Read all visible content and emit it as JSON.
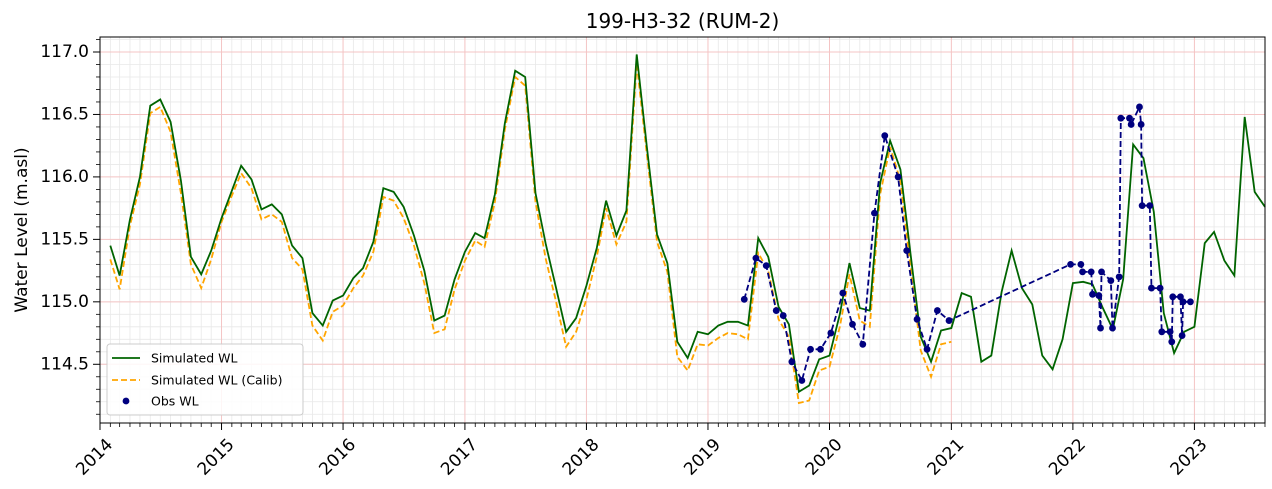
{
  "chart_data": {
    "type": "line",
    "title": "199-H3-32 (RUM-2)",
    "xlabel": "",
    "ylabel": "Water Level (m.asl)",
    "x_type": "date",
    "xlim": [
      "2014-01-01",
      "2023-08-01"
    ],
    "ylim": [
      114.03,
      117.12
    ],
    "x_ticks": [
      "2014",
      "2015",
      "2016",
      "2017",
      "2018",
      "2019",
      "2020",
      "2021",
      "2022",
      "2023"
    ],
    "y_ticks": [
      114.5,
      115.0,
      115.5,
      116.0,
      116.5,
      117.0
    ],
    "y_tick_labels": [
      "114.5",
      "115.0",
      "115.5",
      "116.0",
      "116.5",
      "117.0"
    ],
    "grid": true,
    "legend_position": "lower-left",
    "colors": {
      "simulated": "#006400",
      "calib": "#FFA500",
      "obs": "#00007F",
      "major_grid": "#f4c4c4",
      "minor_grid": "#e8e8e8"
    },
    "series": [
      {
        "name": "Simulated WL",
        "style": "solid",
        "points": [
          [
            "2014-02-01",
            115.45
          ],
          [
            "2014-03-01",
            115.21
          ],
          [
            "2014-04-01",
            115.66
          ],
          [
            "2014-05-01",
            116.0
          ],
          [
            "2014-06-01",
            116.57
          ],
          [
            "2014-07-01",
            116.62
          ],
          [
            "2014-08-01",
            116.44
          ],
          [
            "2014-09-01",
            115.97
          ],
          [
            "2014-10-01",
            115.36
          ],
          [
            "2014-11-01",
            115.22
          ],
          [
            "2014-12-01",
            115.41
          ],
          [
            "2015-01-01",
            115.67
          ],
          [
            "2015-02-01",
            115.89
          ],
          [
            "2015-03-01",
            116.09
          ],
          [
            "2015-04-01",
            115.98
          ],
          [
            "2015-05-01",
            115.74
          ],
          [
            "2015-06-01",
            115.78
          ],
          [
            "2015-07-01",
            115.7
          ],
          [
            "2015-08-01",
            115.45
          ],
          [
            "2015-09-01",
            115.35
          ],
          [
            "2015-10-01",
            114.91
          ],
          [
            "2015-11-01",
            114.81
          ],
          [
            "2015-12-01",
            115.01
          ],
          [
            "2016-01-01",
            115.05
          ],
          [
            "2016-02-01",
            115.19
          ],
          [
            "2016-03-01",
            115.27
          ],
          [
            "2016-04-01",
            115.48
          ],
          [
            "2016-05-01",
            115.91
          ],
          [
            "2016-06-01",
            115.88
          ],
          [
            "2016-07-01",
            115.76
          ],
          [
            "2016-08-01",
            115.53
          ],
          [
            "2016-09-01",
            115.25
          ],
          [
            "2016-10-01",
            114.85
          ],
          [
            "2016-11-01",
            114.89
          ],
          [
            "2016-12-01",
            115.18
          ],
          [
            "2017-01-01",
            115.4
          ],
          [
            "2017-02-01",
            115.55
          ],
          [
            "2017-03-01",
            115.51
          ],
          [
            "2017-04-01",
            115.86
          ],
          [
            "2017-05-01",
            116.43
          ],
          [
            "2017-06-01",
            116.85
          ],
          [
            "2017-07-01",
            116.8
          ],
          [
            "2017-08-01",
            115.87
          ],
          [
            "2017-09-01",
            115.46
          ],
          [
            "2017-10-01",
            115.12
          ],
          [
            "2017-11-01",
            114.76
          ],
          [
            "2017-12-01",
            114.87
          ],
          [
            "2018-01-01",
            115.13
          ],
          [
            "2018-02-01",
            115.43
          ],
          [
            "2018-03-01",
            115.81
          ],
          [
            "2018-04-01",
            115.53
          ],
          [
            "2018-05-01",
            115.73
          ],
          [
            "2018-06-01",
            116.98
          ],
          [
            "2018-07-01",
            116.25
          ],
          [
            "2018-08-01",
            115.54
          ],
          [
            "2018-09-01",
            115.31
          ],
          [
            "2018-10-01",
            114.68
          ],
          [
            "2018-11-01",
            114.55
          ],
          [
            "2018-12-01",
            114.76
          ],
          [
            "2019-01-01",
            114.74
          ],
          [
            "2019-02-01",
            114.81
          ],
          [
            "2019-03-01",
            114.84
          ],
          [
            "2019-04-01",
            114.84
          ],
          [
            "2019-05-01",
            114.81
          ],
          [
            "2019-06-01",
            115.51
          ],
          [
            "2019-07-01",
            115.36
          ],
          [
            "2019-08-01",
            114.96
          ],
          [
            "2019-09-01",
            114.82
          ],
          [
            "2019-10-01",
            114.28
          ],
          [
            "2019-11-01",
            114.33
          ],
          [
            "2019-12-01",
            114.54
          ],
          [
            "2020-01-01",
            114.57
          ],
          [
            "2020-02-01",
            114.9
          ],
          [
            "2020-03-01",
            115.31
          ],
          [
            "2020-04-01",
            114.95
          ],
          [
            "2020-05-01",
            114.93
          ],
          [
            "2020-06-01",
            115.95
          ],
          [
            "2020-07-01",
            116.29
          ],
          [
            "2020-08-01",
            116.06
          ],
          [
            "2020-09-01",
            115.37
          ],
          [
            "2020-10-01",
            114.72
          ],
          [
            "2020-11-01",
            114.52
          ],
          [
            "2020-12-01",
            114.77
          ],
          [
            "2021-01-01",
            114.79
          ],
          [
            "2021-02-01",
            115.07
          ],
          [
            "2021-03-01",
            115.04
          ],
          [
            "2021-04-01",
            114.52
          ],
          [
            "2021-05-01",
            114.57
          ],
          [
            "2021-06-01",
            115.08
          ],
          [
            "2021-07-01",
            115.41
          ],
          [
            "2021-08-01",
            115.11
          ],
          [
            "2021-09-01",
            114.98
          ],
          [
            "2021-10-01",
            114.57
          ],
          [
            "2021-11-01",
            114.46
          ],
          [
            "2021-12-01",
            114.7
          ],
          [
            "2022-01-01",
            115.15
          ],
          [
            "2022-02-01",
            115.16
          ],
          [
            "2022-03-01",
            115.14
          ],
          [
            "2022-04-01",
            114.95
          ],
          [
            "2022-05-01",
            114.78
          ],
          [
            "2022-06-01",
            115.18
          ],
          [
            "2022-07-01",
            116.26
          ],
          [
            "2022-08-01",
            116.15
          ],
          [
            "2022-09-01",
            115.72
          ],
          [
            "2022-10-01",
            114.91
          ],
          [
            "2022-11-01",
            114.59
          ],
          [
            "2022-12-01",
            114.76
          ],
          [
            "2023-01-01",
            114.8
          ],
          [
            "2023-02-01",
            115.47
          ],
          [
            "2023-03-01",
            115.56
          ],
          [
            "2023-04-01",
            115.33
          ],
          [
            "2023-05-01",
            115.21
          ],
          [
            "2023-06-01",
            116.48
          ],
          [
            "2023-07-01",
            115.88
          ],
          [
            "2023-08-01",
            115.76
          ]
        ]
      },
      {
        "name": "Simulated WL (Calib)",
        "style": "dashed",
        "points": [
          [
            "2014-02-01",
            115.34
          ],
          [
            "2014-03-01",
            115.1
          ],
          [
            "2014-04-01",
            115.61
          ],
          [
            "2014-05-01",
            115.94
          ],
          [
            "2014-06-01",
            116.51
          ],
          [
            "2014-07-01",
            116.56
          ],
          [
            "2014-08-01",
            116.36
          ],
          [
            "2014-09-01",
            115.87
          ],
          [
            "2014-10-01",
            115.3
          ],
          [
            "2014-11-01",
            115.11
          ],
          [
            "2014-12-01",
            115.34
          ],
          [
            "2015-01-01",
            115.64
          ],
          [
            "2015-02-01",
            115.85
          ],
          [
            "2015-03-01",
            116.03
          ],
          [
            "2015-04-01",
            115.91
          ],
          [
            "2015-05-01",
            115.66
          ],
          [
            "2015-06-01",
            115.7
          ],
          [
            "2015-07-01",
            115.64
          ],
          [
            "2015-08-01",
            115.35
          ],
          [
            "2015-09-01",
            115.26
          ],
          [
            "2015-10-01",
            114.81
          ],
          [
            "2015-11-01",
            114.69
          ],
          [
            "2015-12-01",
            114.92
          ],
          [
            "2016-01-01",
            114.97
          ],
          [
            "2016-02-01",
            115.11
          ],
          [
            "2016-03-01",
            115.21
          ],
          [
            "2016-04-01",
            115.4
          ],
          [
            "2016-05-01",
            115.84
          ],
          [
            "2016-06-01",
            115.81
          ],
          [
            "2016-07-01",
            115.67
          ],
          [
            "2016-08-01",
            115.45
          ],
          [
            "2016-09-01",
            115.15
          ],
          [
            "2016-10-01",
            114.75
          ],
          [
            "2016-11-01",
            114.78
          ],
          [
            "2016-12-01",
            115.1
          ],
          [
            "2017-01-01",
            115.33
          ],
          [
            "2017-02-01",
            115.49
          ],
          [
            "2017-03-01",
            115.44
          ],
          [
            "2017-04-01",
            115.8
          ],
          [
            "2017-05-01",
            116.38
          ],
          [
            "2017-06-01",
            116.8
          ],
          [
            "2017-07-01",
            116.73
          ],
          [
            "2017-08-01",
            115.8
          ],
          [
            "2017-09-01",
            115.34
          ],
          [
            "2017-10-01",
            115.01
          ],
          [
            "2017-11-01",
            114.64
          ],
          [
            "2017-12-01",
            114.76
          ],
          [
            "2018-01-01",
            115.02
          ],
          [
            "2018-02-01",
            115.36
          ],
          [
            "2018-03-01",
            115.75
          ],
          [
            "2018-04-01",
            115.46
          ],
          [
            "2018-05-01",
            115.64
          ],
          [
            "2018-06-01",
            116.91
          ],
          [
            "2018-07-01",
            116.19
          ],
          [
            "2018-08-01",
            115.48
          ],
          [
            "2018-09-01",
            115.24
          ],
          [
            "2018-10-01",
            114.56
          ],
          [
            "2018-11-01",
            114.45
          ],
          [
            "2018-12-01",
            114.66
          ],
          [
            "2019-01-01",
            114.65
          ],
          [
            "2019-02-01",
            114.71
          ],
          [
            "2019-03-01",
            114.75
          ],
          [
            "2019-04-01",
            114.74
          ],
          [
            "2019-05-01",
            114.7
          ],
          [
            "2019-06-01",
            115.39
          ],
          [
            "2019-07-01",
            115.25
          ],
          [
            "2019-08-01",
            114.86
          ],
          [
            "2019-09-01",
            114.72
          ],
          [
            "2019-10-01",
            114.19
          ],
          [
            "2019-11-01",
            114.21
          ],
          [
            "2019-12-01",
            114.45
          ],
          [
            "2020-01-01",
            114.48
          ],
          [
            "2020-02-01",
            114.8
          ],
          [
            "2020-03-01",
            115.22
          ],
          [
            "2020-04-01",
            114.85
          ],
          [
            "2020-05-01",
            114.8
          ],
          [
            "2020-06-01",
            115.86
          ],
          [
            "2020-07-01",
            116.24
          ],
          [
            "2020-08-01",
            115.97
          ],
          [
            "2020-09-01",
            115.26
          ],
          [
            "2020-10-01",
            114.61
          ],
          [
            "2020-11-01",
            114.4
          ],
          [
            "2020-12-01",
            114.66
          ],
          [
            "2021-01-01",
            114.68
          ]
        ]
      },
      {
        "name": "Obs WL",
        "style": "markers-dashed",
        "points": [
          [
            "2019-04-20",
            115.02
          ],
          [
            "2019-05-25",
            115.35
          ],
          [
            "2019-06-25",
            115.29
          ],
          [
            "2019-07-25",
            114.93
          ],
          [
            "2019-08-15",
            114.89
          ],
          [
            "2019-09-10",
            114.52
          ],
          [
            "2019-10-10",
            114.37
          ],
          [
            "2019-11-05",
            114.62
          ],
          [
            "2019-12-05",
            114.62
          ],
          [
            "2020-01-05",
            114.75
          ],
          [
            "2020-02-10",
            115.07
          ],
          [
            "2020-03-10",
            114.82
          ],
          [
            "2020-04-10",
            114.66
          ],
          [
            "2020-05-15",
            115.71
          ],
          [
            "2020-06-15",
            116.33
          ],
          [
            "2020-07-25",
            116.0
          ],
          [
            "2020-08-20",
            115.41
          ],
          [
            "2020-09-20",
            114.86
          ],
          [
            "2020-10-20",
            114.62
          ],
          [
            "2020-11-20",
            114.93
          ],
          [
            "2020-12-25",
            114.85
          ],
          [
            "2021-12-25",
            115.3
          ],
          [
            "2022-01-25",
            115.3
          ],
          [
            "2022-01-30",
            115.24
          ],
          [
            "2022-02-25",
            115.24
          ],
          [
            "2022-03-01",
            115.06
          ],
          [
            "2022-03-20",
            115.05
          ],
          [
            "2022-03-25",
            114.79
          ],
          [
            "2022-03-28",
            115.24
          ],
          [
            "2022-04-25",
            115.17
          ],
          [
            "2022-04-30",
            114.79
          ],
          [
            "2022-05-20",
            115.2
          ],
          [
            "2022-05-25",
            116.47
          ],
          [
            "2022-06-20",
            116.47
          ],
          [
            "2022-06-25",
            116.42
          ],
          [
            "2022-07-20",
            116.56
          ],
          [
            "2022-07-25",
            116.42
          ],
          [
            "2022-07-28",
            115.77
          ],
          [
            "2022-08-20",
            115.77
          ],
          [
            "2022-08-25",
            115.11
          ],
          [
            "2022-09-20",
            115.11
          ],
          [
            "2022-09-25",
            114.76
          ],
          [
            "2022-10-20",
            114.76
          ],
          [
            "2022-10-25",
            114.68
          ],
          [
            "2022-10-28",
            115.04
          ],
          [
            "2022-11-20",
            115.04
          ],
          [
            "2022-11-25",
            114.73
          ],
          [
            "2022-11-28",
            115.0
          ],
          [
            "2022-12-20",
            115.0
          ]
        ]
      }
    ]
  }
}
